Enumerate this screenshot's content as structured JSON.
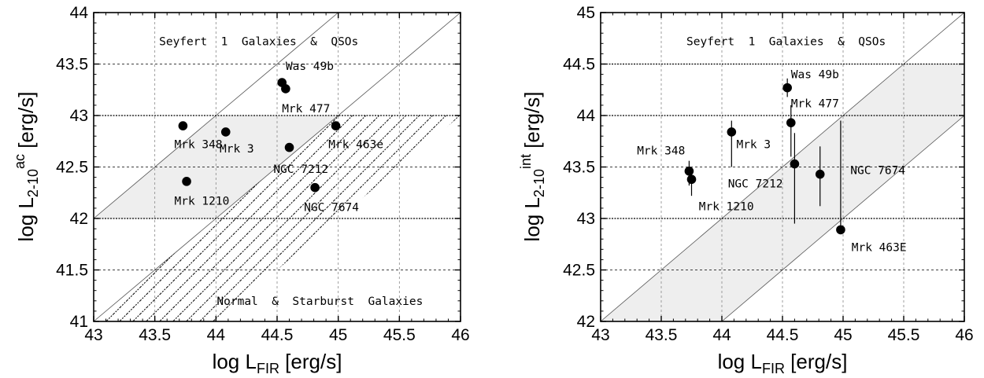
{
  "colors": {
    "band_fill": "#eeeeee",
    "marker": "#000000",
    "axis": "#000000",
    "grid": "#888888"
  },
  "chart_data": [
    {
      "type": "scatter",
      "xlabel": {
        "main": "log L",
        "sub": "FIR",
        "unit": " [erg/s]"
      },
      "ylabel": {
        "main": "log L",
        "sub": "2-10",
        "sup": "ac",
        "unit": " [erg/s]"
      },
      "xlim": [
        43,
        46
      ],
      "ylim": [
        41,
        44
      ],
      "xticks": [
        43,
        43.5,
        44,
        44.5,
        45,
        45.5,
        46
      ],
      "xtick_labels": [
        "43",
        "43.5",
        "44",
        "44.5",
        "45",
        "45.5",
        "46"
      ],
      "yticks": [
        41,
        41.5,
        42,
        42.5,
        43,
        43.5,
        44
      ],
      "ytick_labels": [
        "41",
        "41.5",
        "42",
        "42.5",
        "43",
        "43.5",
        "44"
      ],
      "grid": true,
      "bands": [
        {
          "style": "shaded",
          "region": "Seyfert 1 Galaxies & QSOs",
          "lower_offset": -2.0,
          "upper_offset": -1.0,
          "ylo": 42,
          "yhi": 43
        },
        {
          "style": "hatched",
          "region": "Normal & Starburst Galaxies",
          "lower_offset": -3.0,
          "upper_offset": -2.0,
          "ylo": 41,
          "yhi": 43
        }
      ],
      "region_labels": [
        {
          "text": "Seyfert  1  Galaxies  &  QSOs",
          "x": 44.35,
          "y": 43.72
        },
        {
          "text": "Normal  &  Starburst  Galaxies",
          "x": 44.85,
          "y": 41.2
        }
      ],
      "points": [
        {
          "name": "Was 49b",
          "x": 44.54,
          "y": 43.32,
          "lx": 44.57,
          "ly": 43.48,
          "anchor": "start"
        },
        {
          "name": "Mrk 477",
          "x": 44.57,
          "y": 43.26,
          "lx": 44.54,
          "ly": 43.07,
          "anchor": "start"
        },
        {
          "name": "Mrk 348",
          "x": 43.73,
          "y": 42.9,
          "lx": 43.66,
          "ly": 42.72,
          "anchor": "start"
        },
        {
          "name": "Mrk 3",
          "x": 44.08,
          "y": 42.84,
          "lx": 44.03,
          "ly": 42.68,
          "anchor": "start"
        },
        {
          "name": "Mrk 463e",
          "x": 44.98,
          "y": 42.9,
          "lx": 44.92,
          "ly": 42.72,
          "anchor": "start"
        },
        {
          "name": "NGC 7212",
          "x": 44.6,
          "y": 42.69,
          "lx": 44.47,
          "ly": 42.48,
          "anchor": "start"
        },
        {
          "name": "Mrk 1210",
          "x": 43.76,
          "y": 42.36,
          "lx": 43.66,
          "ly": 42.17,
          "anchor": "start"
        },
        {
          "name": "NGC 7674",
          "x": 44.81,
          "y": 42.3,
          "lx": 44.72,
          "ly": 42.11,
          "anchor": "start"
        }
      ]
    },
    {
      "type": "scatter",
      "xlabel": {
        "main": "log L",
        "sub": "FIR",
        "unit": " [erg/s]"
      },
      "ylabel": {
        "main": "log L",
        "sub": "2-10",
        "sup": "int",
        "unit": " [erg/s]"
      },
      "xlim": [
        43,
        46
      ],
      "ylim": [
        42,
        45
      ],
      "xticks": [
        43,
        43.5,
        44,
        44.5,
        45,
        45.5,
        46
      ],
      "xtick_labels": [
        "43",
        "43.5",
        "44",
        "44.5",
        "45",
        "45.5",
        "46"
      ],
      "yticks": [
        42,
        42.5,
        43,
        43.5,
        44,
        44.5,
        45
      ],
      "ytick_labels": [
        "42",
        "42.5",
        "43",
        "43.5",
        "44",
        "44.5",
        "45"
      ],
      "grid": true,
      "bands": [
        {
          "style": "shaded",
          "region": "Seyfert 1 Galaxies & QSOs",
          "lower_offset": -2.0,
          "upper_offset": -1.0,
          "ylo": 42,
          "yhi": 44.5
        }
      ],
      "region_labels": [
        {
          "text": "Seyfert  1  Galaxies  &  QSOs",
          "x": 44.53,
          "y": 44.72
        }
      ],
      "points": [
        {
          "name": "Was 49b",
          "x": 44.54,
          "y": 44.27,
          "err": [
            44.18,
            44.36
          ],
          "lx": 44.57,
          "ly": 44.4,
          "anchor": "start"
        },
        {
          "name": "Mrk 477",
          "x": 44.57,
          "y": 43.93,
          "err": [
            43.6,
            44.1
          ],
          "lx": 44.57,
          "ly": 44.12,
          "anchor": "start"
        },
        {
          "name": "Mrk 3",
          "x": 44.08,
          "y": 43.84,
          "err": [
            43.5,
            43.95
          ],
          "lx": 44.12,
          "ly": 43.72,
          "anchor": "start"
        },
        {
          "name": "Mrk 348",
          "x": 43.73,
          "y": 43.46,
          "err": [
            43.32,
            43.56
          ],
          "lx": 43.3,
          "ly": 43.66,
          "anchor": "start"
        },
        {
          "name": "Mrk 1210",
          "x": 43.75,
          "y": 43.38,
          "err": [
            43.22,
            43.48
          ],
          "lx": 43.81,
          "ly": 43.12,
          "anchor": "start"
        },
        {
          "name": "NGC 7212",
          "x": 44.6,
          "y": 43.53,
          "err": [
            42.95,
            43.83
          ],
          "lx": 44.05,
          "ly": 43.34,
          "anchor": "start"
        },
        {
          "name": "NGC 7674",
          "x": 44.81,
          "y": 43.43,
          "err": [
            43.12,
            43.7
          ],
          "lx": 45.06,
          "ly": 43.47,
          "anchor": "start"
        },
        {
          "name": "Mrk 463E",
          "x": 44.98,
          "y": 42.89,
          "err": [
            42.87,
            43.95
          ],
          "lx": 45.07,
          "ly": 42.72,
          "anchor": "start"
        }
      ]
    }
  ]
}
